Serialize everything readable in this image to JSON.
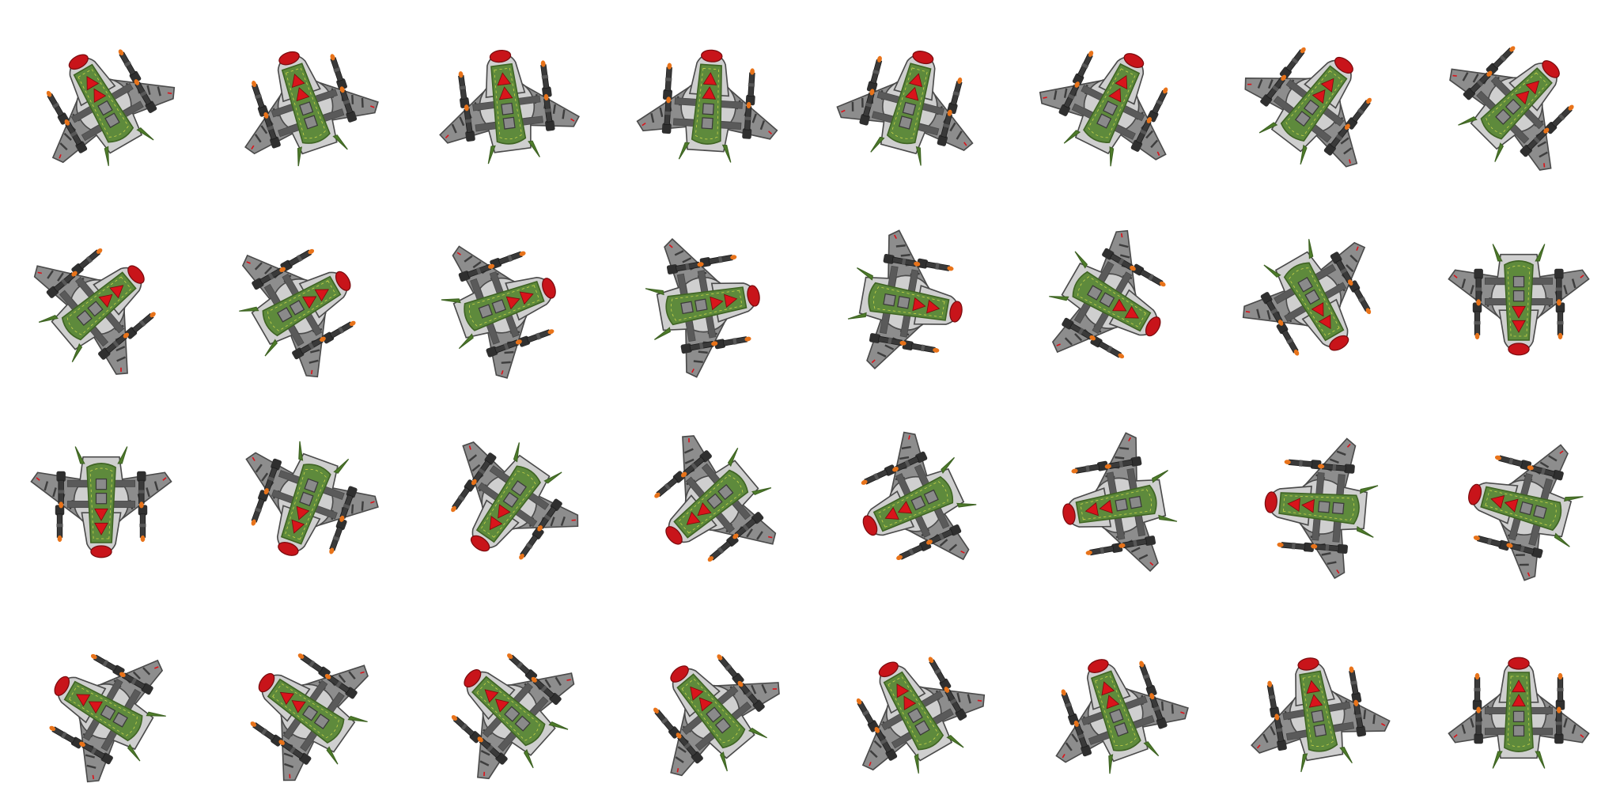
{
  "spritesheet": {
    "columns": 8,
    "rows": 4,
    "frame_count": 32,
    "background": "#ffffff",
    "frames_heading_deg": [
      -30,
      -18.75,
      -7.5,
      3.75,
      15,
      26.25,
      37.5,
      45,
      50,
      60,
      70,
      80,
      100,
      120,
      150,
      180,
      180,
      200,
      215,
      230,
      245,
      260,
      275,
      285,
      -60,
      -55,
      -48,
      -40,
      -30,
      -20,
      -10,
      0
    ],
    "colors": {
      "hull_gray": "#8d8d8d",
      "hull_dark": "#4b4b4b",
      "hull_light": "#cfcfcf",
      "stripe": "#3e3e3e",
      "cockpit_green": "#5e8a3c",
      "cockpit_dark": "#3f6424",
      "fin_green": "#4f7d2a",
      "arrow_red": "#d9141b",
      "nose_red": "#c8141a",
      "gun_dark": "#2f2f2f",
      "gun_tip": "#e8731a"
    }
  }
}
